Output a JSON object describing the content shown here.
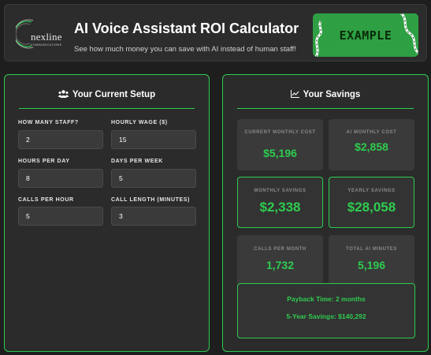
{
  "header": {
    "logo_text": "nexline",
    "logo_sub": "COMMUNICATIONS",
    "title": "AI Voice Assistant ROI Calculator",
    "subtitle": "See how much money you can save with AI instead of human staff!",
    "badge": "EXAMPLE"
  },
  "setup": {
    "title": "Your Current Setup",
    "icon": "users-icon",
    "fields": {
      "staff": {
        "label": "HOW MANY STAFF?",
        "value": "2"
      },
      "wage": {
        "label": "HOURLY WAGE ($)",
        "value": "15"
      },
      "hours": {
        "label": "HOURS PER DAY",
        "value": "8"
      },
      "days": {
        "label": "DAYS PER WEEK",
        "value": "5"
      },
      "calls": {
        "label": "CALLS PER HOUR",
        "value": "5"
      },
      "length": {
        "label": "CALL LENGTH (MINUTES)",
        "value": "3"
      }
    }
  },
  "savings": {
    "title": "Your Savings",
    "icon": "chart-line-icon",
    "stats": {
      "current_cost": {
        "label": "CURRENT MONTHLY COST",
        "value": "$5,196"
      },
      "ai_cost": {
        "label": "AI MONTHLY COST",
        "value": "$2,858"
      },
      "monthly": {
        "label": "MONTHLY SAVINGS",
        "value": "$2,338"
      },
      "yearly": {
        "label": "YEARLY SAVINGS",
        "value": "$28,058"
      },
      "calls_month": {
        "label": "CALLS PER MONTH",
        "value": "1,732"
      },
      "ai_minutes": {
        "label": "TOTAL AI MINUTES",
        "value": "5,196"
      }
    },
    "payback": "Payback Time: 2 months",
    "five_year": "5-Year Savings: $140,292"
  },
  "colors": {
    "accent": "#2ecc4f",
    "background": "#1e1e1e",
    "panel": "#2b2b2b",
    "badge": "#2ea043"
  }
}
